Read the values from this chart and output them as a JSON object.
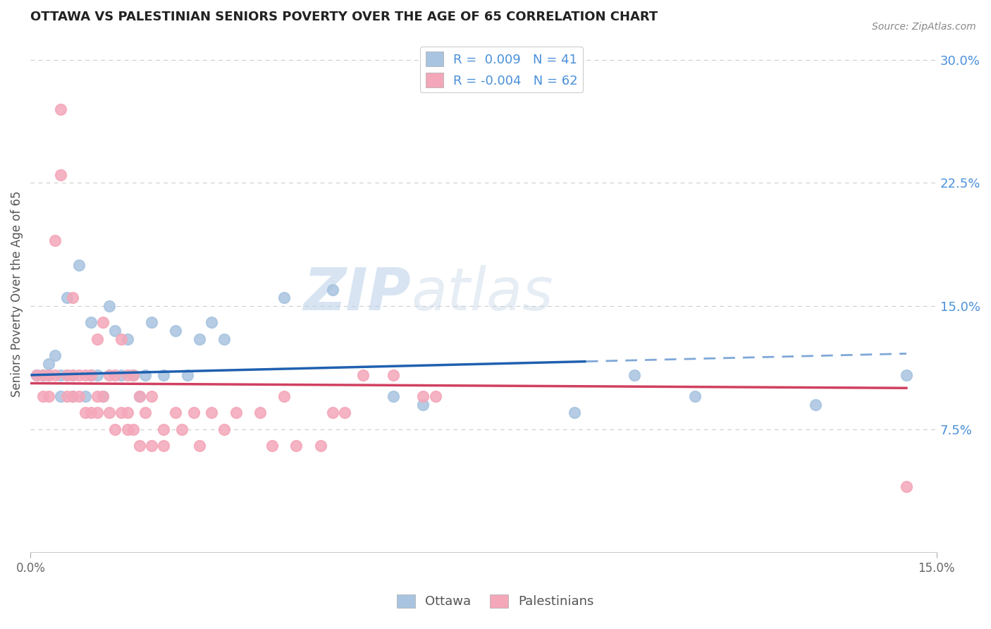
{
  "title": "OTTAWA VS PALESTINIAN SENIORS POVERTY OVER THE AGE OF 65 CORRELATION CHART",
  "source": "Source: ZipAtlas.com",
  "ylabel": "Seniors Poverty Over the Age of 65",
  "xlim": [
    0.0,
    0.15
  ],
  "ylim": [
    0.0,
    0.315
  ],
  "yticks": [
    0.075,
    0.15,
    0.225,
    0.3
  ],
  "ytick_labels": [
    "7.5%",
    "15.0%",
    "22.5%",
    "30.0%"
  ],
  "legend_r1": "R=  0.009",
  "legend_n1": "N = 41",
  "legend_r2": "R = -0.004",
  "legend_n2": "N = 62",
  "ottawa_color": "#a8c4e0",
  "palestinian_color": "#f4a7b9",
  "trend_ottawa_color": "#2060b0",
  "trend_ottawa_dash_color": "#80a8d8",
  "trend_palestinian_color": "#d04060",
  "watermark_zip": "ZIP",
  "watermark_atlas": "atlas",
  "background_color": "#ffffff",
  "trend_ottawa_intercept": 0.108,
  "trend_ottawa_slope": 0.09,
  "trend_pal_intercept": 0.103,
  "trend_pal_slope": -0.02,
  "ottawa_scatter": [
    [
      0.001,
      0.108
    ],
    [
      0.002,
      0.108
    ],
    [
      0.002,
      0.108
    ],
    [
      0.003,
      0.115
    ],
    [
      0.003,
      0.108
    ],
    [
      0.004,
      0.12
    ],
    [
      0.005,
      0.108
    ],
    [
      0.005,
      0.095
    ],
    [
      0.006,
      0.155
    ],
    [
      0.006,
      0.108
    ],
    [
      0.007,
      0.108
    ],
    [
      0.007,
      0.095
    ],
    [
      0.008,
      0.175
    ],
    [
      0.009,
      0.095
    ],
    [
      0.01,
      0.14
    ],
    [
      0.01,
      0.108
    ],
    [
      0.011,
      0.108
    ],
    [
      0.012,
      0.095
    ],
    [
      0.013,
      0.15
    ],
    [
      0.014,
      0.135
    ],
    [
      0.015,
      0.108
    ],
    [
      0.016,
      0.13
    ],
    [
      0.017,
      0.108
    ],
    [
      0.018,
      0.095
    ],
    [
      0.019,
      0.108
    ],
    [
      0.02,
      0.14
    ],
    [
      0.022,
      0.108
    ],
    [
      0.024,
      0.135
    ],
    [
      0.026,
      0.108
    ],
    [
      0.028,
      0.13
    ],
    [
      0.03,
      0.14
    ],
    [
      0.032,
      0.13
    ],
    [
      0.042,
      0.155
    ],
    [
      0.05,
      0.16
    ],
    [
      0.06,
      0.095
    ],
    [
      0.065,
      0.09
    ],
    [
      0.09,
      0.085
    ],
    [
      0.1,
      0.108
    ],
    [
      0.11,
      0.095
    ],
    [
      0.13,
      0.09
    ],
    [
      0.145,
      0.108
    ]
  ],
  "palestinian_scatter": [
    [
      0.001,
      0.108
    ],
    [
      0.002,
      0.108
    ],
    [
      0.002,
      0.095
    ],
    [
      0.003,
      0.108
    ],
    [
      0.003,
      0.095
    ],
    [
      0.004,
      0.19
    ],
    [
      0.004,
      0.108
    ],
    [
      0.005,
      0.27
    ],
    [
      0.005,
      0.23
    ],
    [
      0.006,
      0.108
    ],
    [
      0.006,
      0.095
    ],
    [
      0.007,
      0.155
    ],
    [
      0.007,
      0.108
    ],
    [
      0.007,
      0.095
    ],
    [
      0.008,
      0.108
    ],
    [
      0.008,
      0.095
    ],
    [
      0.009,
      0.108
    ],
    [
      0.009,
      0.085
    ],
    [
      0.01,
      0.108
    ],
    [
      0.01,
      0.085
    ],
    [
      0.011,
      0.13
    ],
    [
      0.011,
      0.095
    ],
    [
      0.011,
      0.085
    ],
    [
      0.012,
      0.14
    ],
    [
      0.012,
      0.095
    ],
    [
      0.013,
      0.108
    ],
    [
      0.013,
      0.085
    ],
    [
      0.014,
      0.108
    ],
    [
      0.014,
      0.075
    ],
    [
      0.015,
      0.13
    ],
    [
      0.015,
      0.085
    ],
    [
      0.016,
      0.108
    ],
    [
      0.016,
      0.085
    ],
    [
      0.016,
      0.075
    ],
    [
      0.017,
      0.108
    ],
    [
      0.017,
      0.075
    ],
    [
      0.018,
      0.095
    ],
    [
      0.018,
      0.065
    ],
    [
      0.019,
      0.085
    ],
    [
      0.02,
      0.095
    ],
    [
      0.02,
      0.065
    ],
    [
      0.022,
      0.075
    ],
    [
      0.022,
      0.065
    ],
    [
      0.024,
      0.085
    ],
    [
      0.025,
      0.075
    ],
    [
      0.027,
      0.085
    ],
    [
      0.028,
      0.065
    ],
    [
      0.03,
      0.085
    ],
    [
      0.032,
      0.075
    ],
    [
      0.034,
      0.085
    ],
    [
      0.038,
      0.085
    ],
    [
      0.04,
      0.065
    ],
    [
      0.042,
      0.095
    ],
    [
      0.044,
      0.065
    ],
    [
      0.048,
      0.065
    ],
    [
      0.05,
      0.085
    ],
    [
      0.052,
      0.085
    ],
    [
      0.055,
      0.108
    ],
    [
      0.06,
      0.108
    ],
    [
      0.065,
      0.095
    ],
    [
      0.067,
      0.095
    ],
    [
      0.145,
      0.04
    ]
  ]
}
